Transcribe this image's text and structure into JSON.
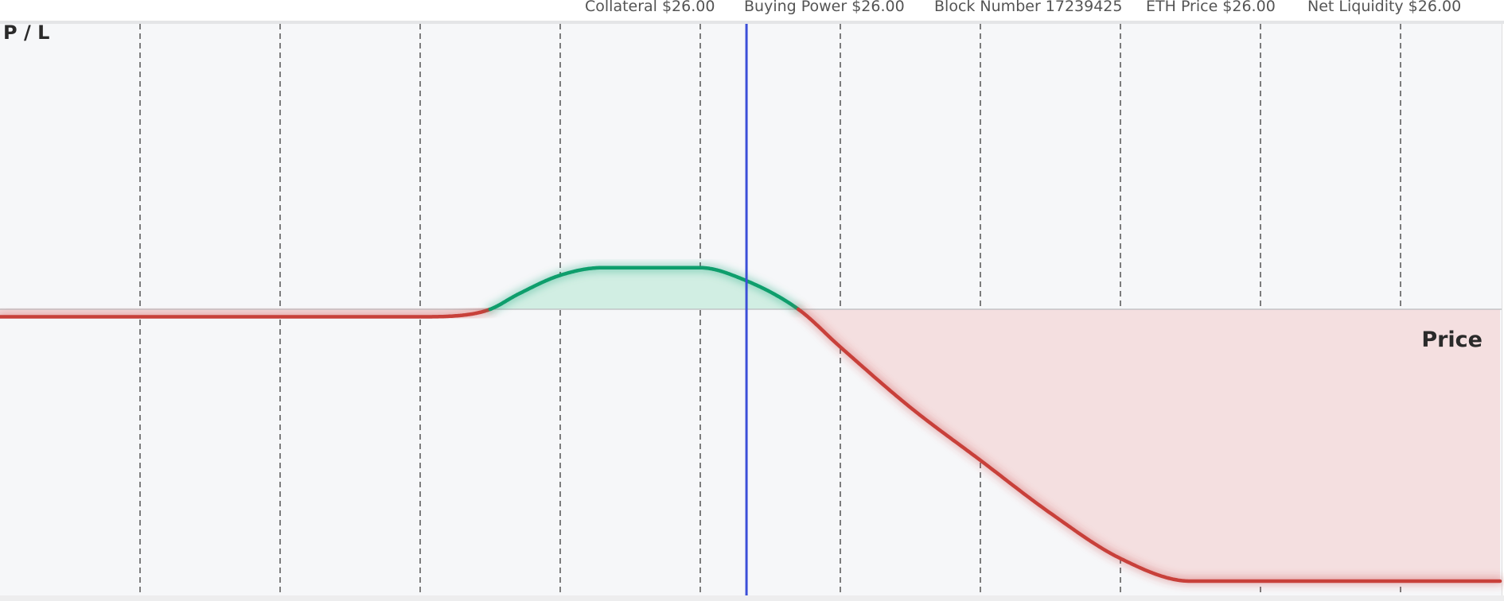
{
  "header": {
    "stats": [
      {
        "label": "Collateral",
        "value": "$26.00"
      },
      {
        "label": "Buying Power",
        "value": "$26.00"
      },
      {
        "label": "Block Number",
        "value": "17239425"
      },
      {
        "label": "ETH Price",
        "value": "$26.00"
      },
      {
        "label": "Net Liquidity",
        "value": "$26.00"
      }
    ]
  },
  "chart_data": {
    "type": "area",
    "ylabel": "P / L",
    "xlabel": "Price",
    "xlim": [
      0,
      10.71
    ],
    "ylim": [
      -3.6,
      3.6
    ],
    "grid": "vertical dashed lines at x = 1..10",
    "current_price_marker_x": 5.33,
    "colors": {
      "profit": "#0e9e6c",
      "loss": "#c8403a",
      "marker": "#3b4fd8",
      "profit_fill": "#d1eee3",
      "loss_fill": "#f4dfe0"
    },
    "series": [
      {
        "x": [
          0,
          3.0,
          3.3,
          3.5,
          3.7,
          4.0,
          4.3,
          4.6,
          5.0,
          5.3,
          5.7,
          6.0,
          6.5,
          7.0,
          7.5,
          8.0,
          8.5,
          9.0,
          9.5,
          10.0,
          10.71
        ],
        "values": [
          -0.1,
          -0.1,
          -0.08,
          0.0,
          0.2,
          0.45,
          0.55,
          0.55,
          0.55,
          0.4,
          0.0,
          -0.5,
          -1.3,
          -2.0,
          -2.7,
          -3.3,
          -3.6,
          -3.6,
          -3.6,
          -3.6,
          -3.6
        ]
      }
    ]
  }
}
